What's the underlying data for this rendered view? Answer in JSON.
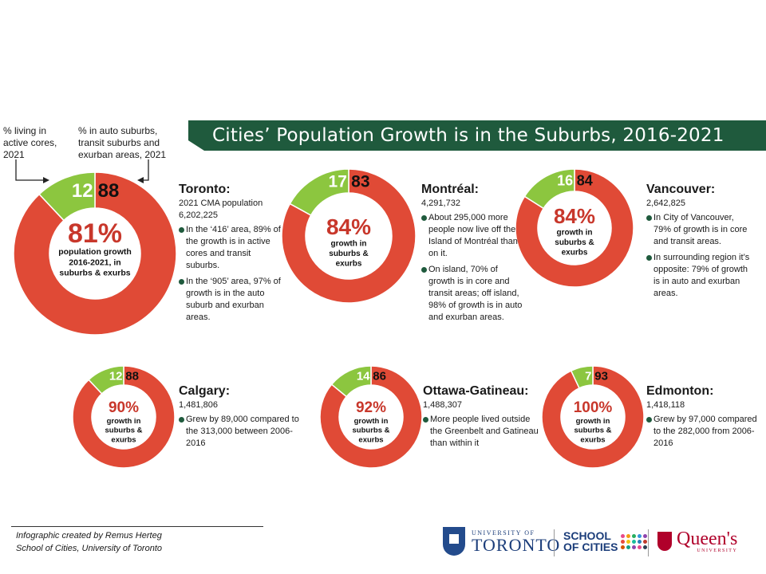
{
  "title": "Cities’ Population Growth is in the Suburbs, 2016-2021",
  "legend": {
    "left_note": "% living in active cores, 2021",
    "right_note": "% in auto suburbs, transit suburbs and exurban areas, 2021"
  },
  "colors": {
    "core": "#8cc63f",
    "suburb": "#e04a36",
    "banner": "#1f5a3d",
    "growth_text": "#c8372b"
  },
  "chart_data": {
    "type": "pie",
    "categories": [
      "% living in active cores, 2021",
      "% in auto suburbs, transit suburbs and exurban areas, 2021"
    ],
    "series": [
      {
        "name": "Toronto",
        "values": [
          12,
          88
        ]
      },
      {
        "name": "Montréal",
        "values": [
          17,
          83
        ]
      },
      {
        "name": "Vancouver",
        "values": [
          16,
          84
        ]
      },
      {
        "name": "Calgary",
        "values": [
          12,
          88
        ]
      },
      {
        "name": "Ottawa-Gatineau",
        "values": [
          14,
          86
        ]
      },
      {
        "name": "Edmonton",
        "values": [
          7,
          93
        ]
      }
    ],
    "growth_in_suburbs_pct": [
      81,
      84,
      84,
      90,
      92,
      100
    ]
  },
  "cities": [
    {
      "name": "Toronto:",
      "pop_line": "2021 CMA population 6,202,225",
      "core": "12",
      "suburb": "88",
      "growth": "81%",
      "growth_label": "population growth 2016-2021, in suburbs & exurbs",
      "bullets": [
        "In the ‘416’ area, 89% of the growth is in active cores and transit suburbs.",
        "In the ‘905’ area, 97% of growth is in the auto suburb and exurban areas."
      ]
    },
    {
      "name": "Montréal:",
      "pop_line": "4,291,732",
      "core": "17",
      "suburb": "83",
      "growth": "84%",
      "growth_label": "growth in suburbs & exurbs",
      "bullets": [
        "About 295,000 more people now live off the Island of Montréal than on it.",
        "On island, 70% of growth is in core and transit areas; off island, 98% of growth is in auto and exurban areas."
      ]
    },
    {
      "name": "Vancouver:",
      "pop_line": "2,642,825",
      "core": "16",
      "suburb": "84",
      "growth": "84%",
      "growth_label": "growth in suburbs & exurbs",
      "bullets": [
        "In City of Vancouver, 79% of growth is in core and transit areas.",
        "In surrounding region it’s opposite: 79% of growth is in auto and exurban areas."
      ]
    },
    {
      "name": "Calgary:",
      "pop_line": "1,481,806",
      "core": "12",
      "suburb": "88",
      "growth": "90%",
      "growth_label": "growth in suburbs & exurbs",
      "bullets": [
        "Grew by 89,000 compared to the 313,000 between 2006-2016"
      ]
    },
    {
      "name": "Ottawa-Gatineau:",
      "pop_line": "1,488,307",
      "core": "14",
      "suburb": "86",
      "growth": "92%",
      "growth_label": "growth in suburbs & exurbs",
      "bullets": [
        "More people lived outside the Greenbelt and Gatineau than within it"
      ]
    },
    {
      "name": "Edmonton:",
      "pop_line": "1,418,118",
      "core": "7",
      "suburb": "93",
      "growth": "100%",
      "growth_label": "growth in suburbs & exurbs",
      "bullets": [
        "Grew by 97,000 compared to the 282,000 from 2006-2016"
      ]
    }
  ],
  "footer": {
    "credit_line1": "Infographic created by Remus Herteg",
    "credit_line2": "School of Cities, University of Toronto",
    "uoft_small": "UNIVERSITY OF",
    "uoft_big": "TORONTO",
    "soc_line1": "SCHOOL",
    "soc_line2": "OF CITIES",
    "queens_big": "Queen's",
    "queens_small": "UNIVERSITY"
  }
}
